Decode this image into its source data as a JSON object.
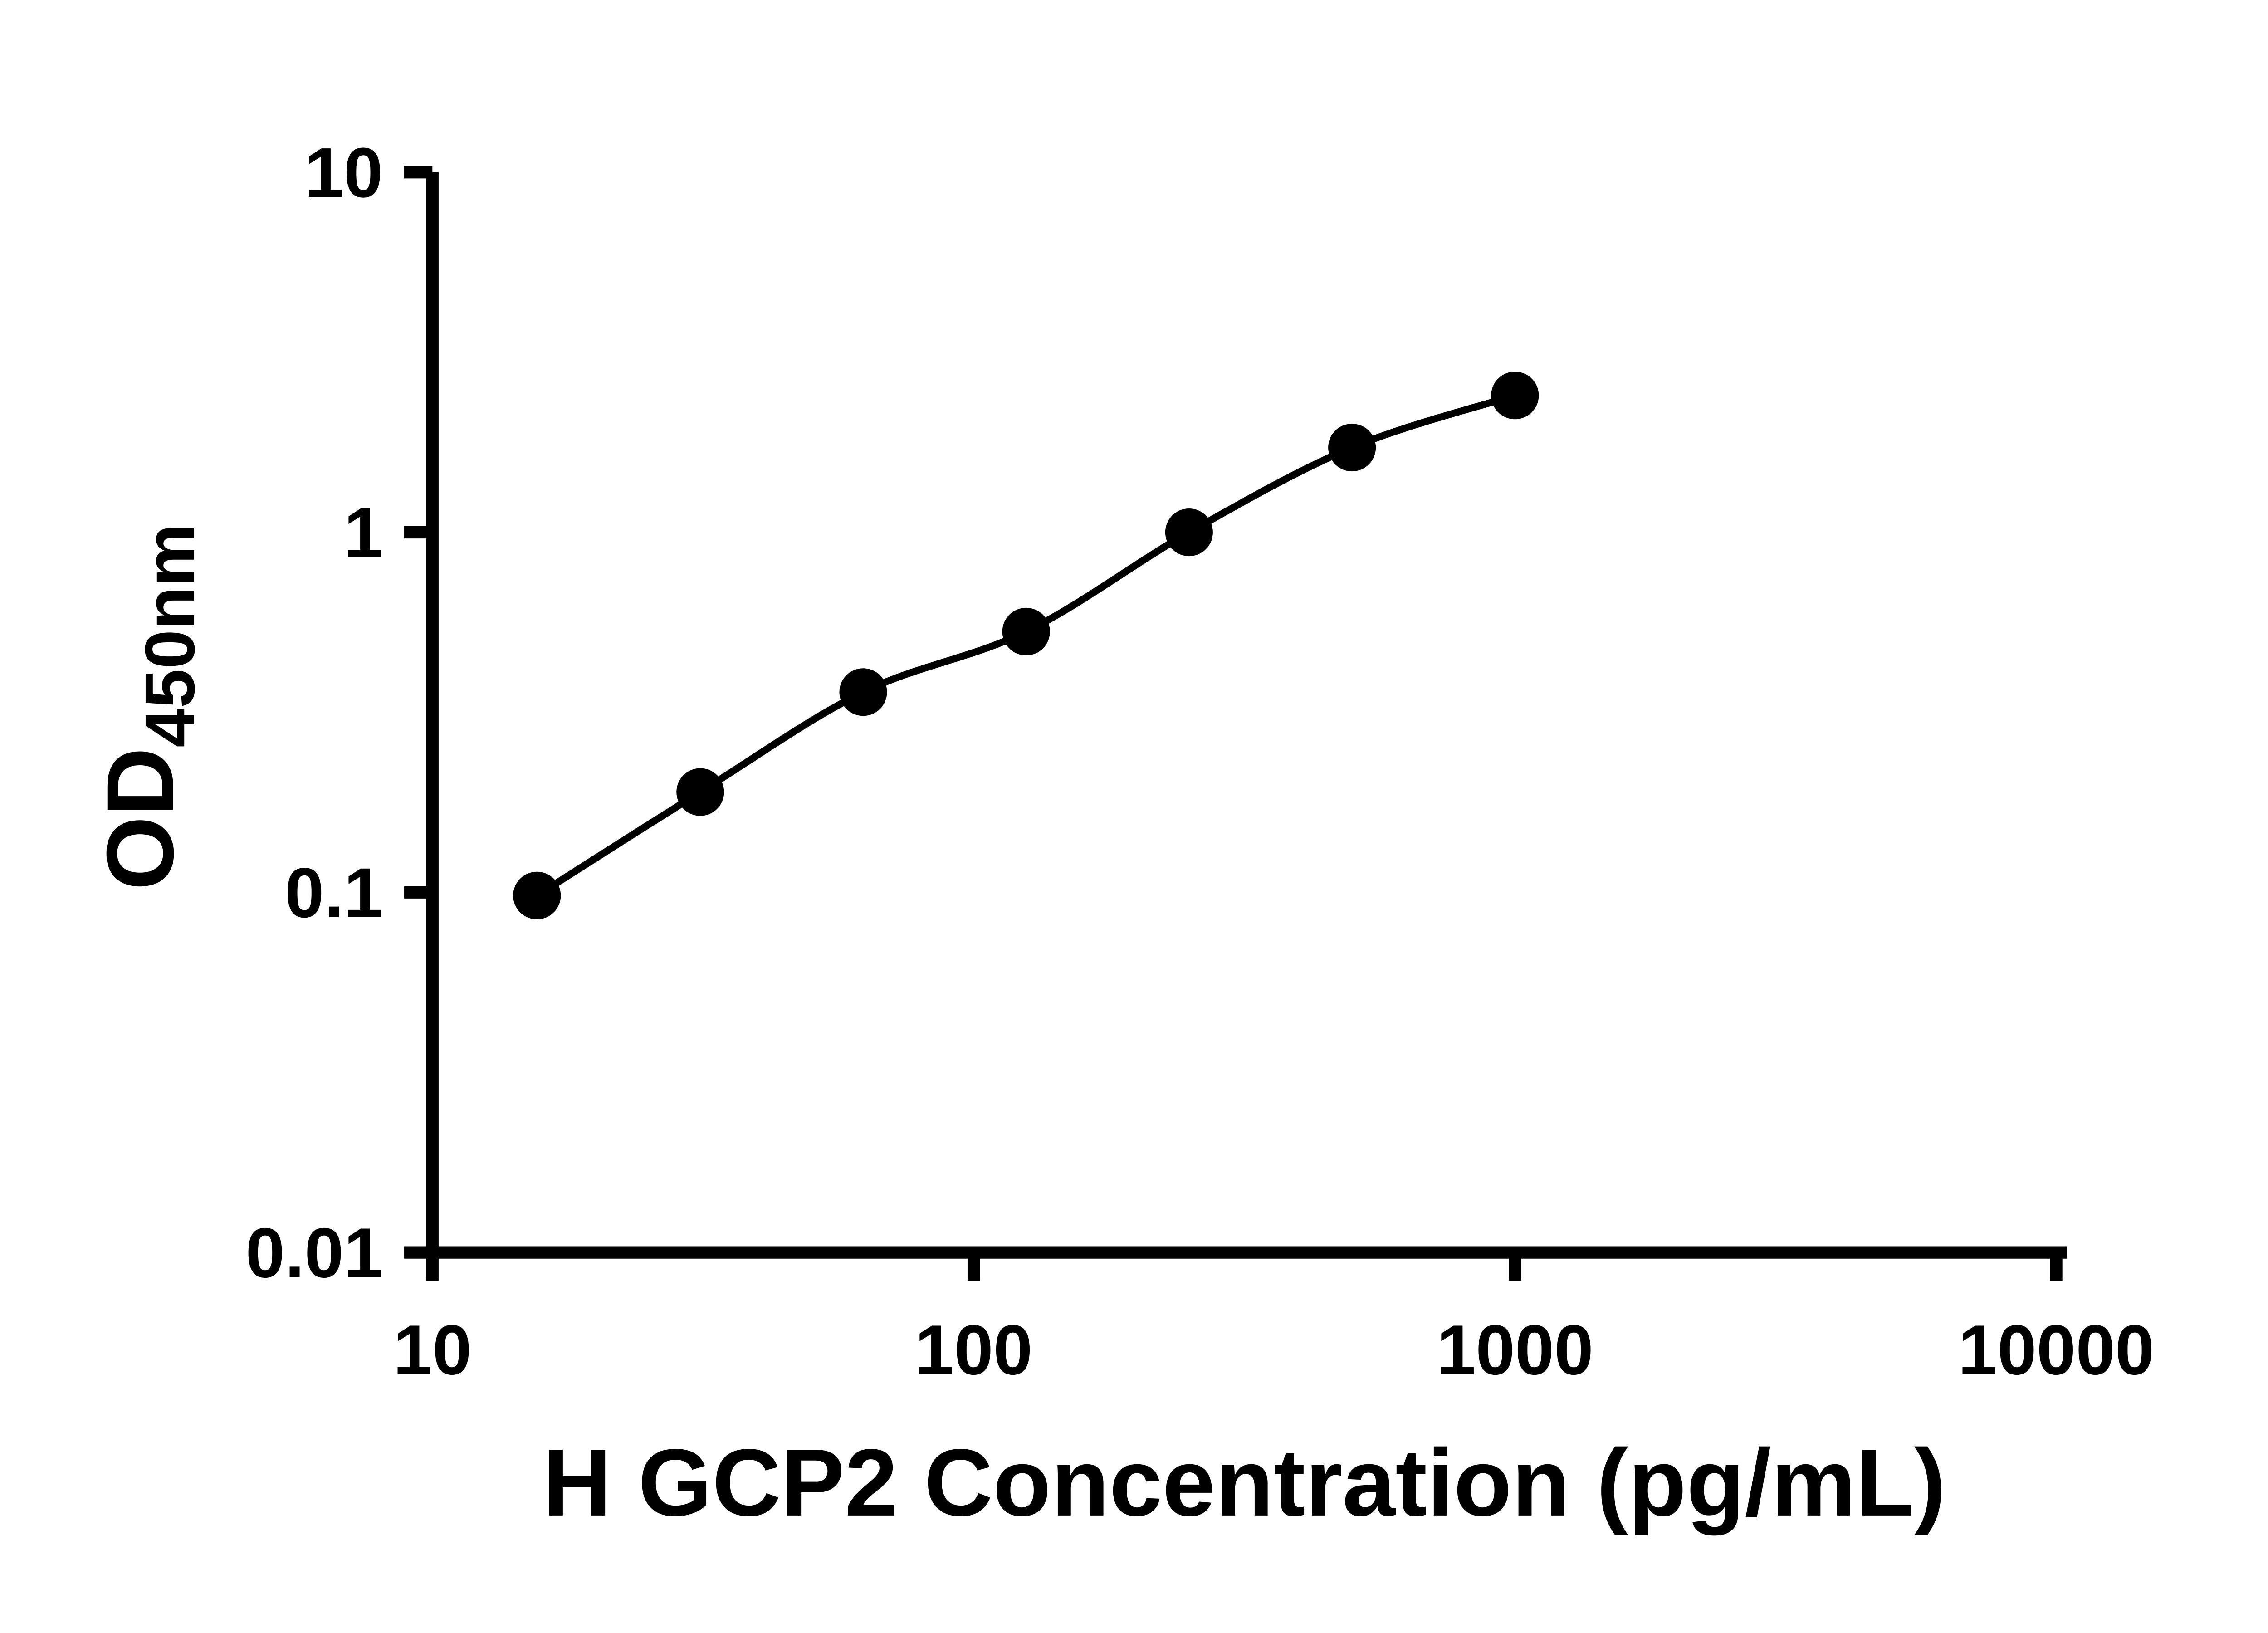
{
  "figure": {
    "background": "#ffffff",
    "ink_color": "#000000"
  },
  "chart_data": {
    "type": "scatter",
    "title": "",
    "xlabel": "H GCP2 Concentration (pg/mL)",
    "ylabel_main": "OD",
    "ylabel_sub": "450nm",
    "x_scale": "log",
    "y_scale": "log",
    "xlim": [
      10,
      10000
    ],
    "ylim": [
      0.01,
      10
    ],
    "grid": false,
    "legend": "none",
    "x_ticks": [
      {
        "value": 10,
        "label": "10"
      },
      {
        "value": 100,
        "label": "100"
      },
      {
        "value": 1000,
        "label": "1000"
      },
      {
        "value": 10000,
        "label": "10000"
      }
    ],
    "y_ticks": [
      {
        "value": 0.01,
        "label": "0.01"
      },
      {
        "value": 0.1,
        "label": "0.1"
      },
      {
        "value": 1,
        "label": "1"
      },
      {
        "value": 10,
        "label": "10"
      }
    ],
    "series": [
      {
        "name": "standard-curve",
        "marker": "filled-circle",
        "fit_line": true,
        "points": [
          {
            "x": 15.6,
            "y": 0.098
          },
          {
            "x": 31.25,
            "y": 0.19
          },
          {
            "x": 62.5,
            "y": 0.36
          },
          {
            "x": 125,
            "y": 0.53
          },
          {
            "x": 250,
            "y": 1.0
          },
          {
            "x": 500,
            "y": 1.72
          },
          {
            "x": 1000,
            "y": 2.4
          }
        ]
      }
    ]
  }
}
